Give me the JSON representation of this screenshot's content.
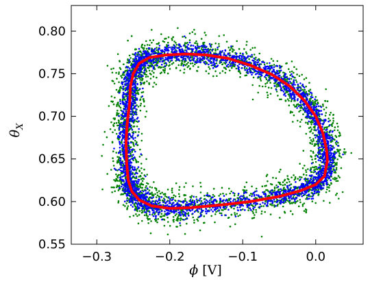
{
  "chart_data": {
    "type": "scatter",
    "title": "",
    "xlabel": {
      "symbol": "ϕ",
      "unit": "[V]"
    },
    "ylabel": {
      "symbol": "θ",
      "subscript": "X"
    },
    "xlim": [
      -0.335,
      0.065
    ],
    "ylim": [
      0.55,
      0.83
    ],
    "x_ticks": [
      {
        "value": -0.3,
        "label": "−0.3"
      },
      {
        "value": -0.2,
        "label": "−0.2"
      },
      {
        "value": -0.1,
        "label": "−0.1"
      },
      {
        "value": 0.0,
        "label": "0.0"
      }
    ],
    "y_ticks": [
      {
        "value": 0.55,
        "label": "0.55"
      },
      {
        "value": 0.6,
        "label": "0.60"
      },
      {
        "value": 0.65,
        "label": "0.65"
      },
      {
        "value": 0.7,
        "label": "0.70"
      },
      {
        "value": 0.75,
        "label": "0.75"
      },
      {
        "value": 0.8,
        "label": "0.80"
      }
    ],
    "grid": false,
    "legend": "none",
    "series": [
      {
        "kind": "scatter",
        "color": "#008000",
        "point_count": 3000,
        "spread_x": 0.011,
        "spread_y": 0.011,
        "outlier_fraction": 0.09
      },
      {
        "kind": "scatter",
        "color": "#0000ff",
        "point_count": 3000,
        "spread_x": 0.0055,
        "spread_y": 0.0055,
        "outlier_fraction": 0.03
      },
      {
        "kind": "line",
        "color": "#ff0000",
        "x": [
          -0.255,
          -0.254,
          -0.25,
          -0.242,
          -0.228,
          -0.205,
          -0.178,
          -0.15,
          -0.12,
          -0.09,
          -0.06,
          -0.035,
          -0.015,
          0.0,
          0.01,
          0.015,
          0.016,
          0.012,
          0.0,
          -0.02,
          -0.05,
          -0.09,
          -0.13,
          -0.17,
          -0.2,
          -0.225,
          -0.242,
          -0.252,
          -0.257,
          -0.259,
          -0.26,
          -0.258,
          -0.255
        ],
        "y": [
          0.715,
          0.735,
          0.75,
          0.762,
          0.769,
          0.772,
          0.773,
          0.772,
          0.768,
          0.76,
          0.749,
          0.735,
          0.718,
          0.7,
          0.68,
          0.66,
          0.648,
          0.63,
          0.62,
          0.613,
          0.606,
          0.6,
          0.596,
          0.593,
          0.592,
          0.595,
          0.602,
          0.612,
          0.625,
          0.645,
          0.67,
          0.695,
          0.715
        ]
      }
    ]
  }
}
